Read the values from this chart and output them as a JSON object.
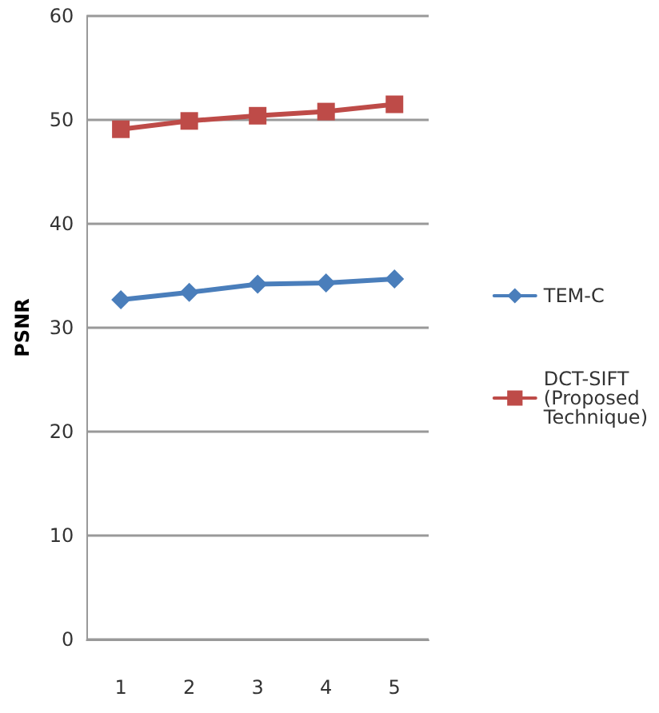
{
  "chart_data": {
    "type": "line",
    "ylabel": "PSNR",
    "categories": [
      "1",
      "2",
      "3",
      "4",
      "5"
    ],
    "series": [
      {
        "name": "TEM-C",
        "color": "#4a7ebb",
        "marker": "diamond",
        "values": [
          32.7,
          33.4,
          34.2,
          34.3,
          34.7
        ]
      },
      {
        "name": "DCT-SIFT (Proposed Technique)",
        "color": "#be4b48",
        "marker": "square",
        "values": [
          49.1,
          49.9,
          50.4,
          50.8,
          51.5
        ]
      }
    ],
    "ylim": [
      0,
      60
    ],
    "yticks": [
      0,
      10,
      20,
      30,
      40,
      50,
      60
    ],
    "grid": "y",
    "legend": "right",
    "line_style": "solid"
  }
}
